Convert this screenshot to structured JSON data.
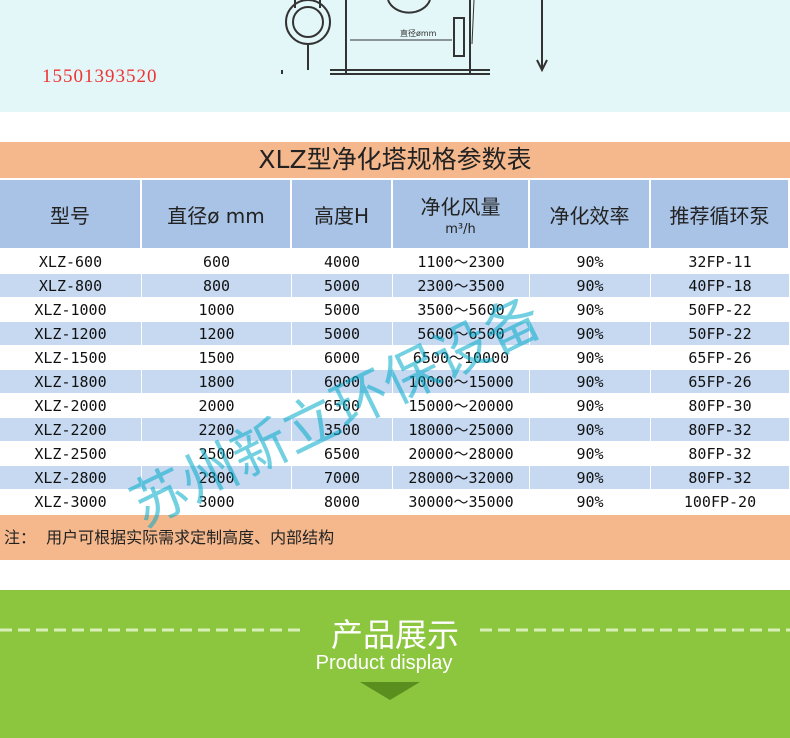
{
  "phone": "15501393520",
  "table": {
    "title": "XLZ型净化塔规格参数表",
    "header": [
      "型号",
      "直径ø mm",
      "高度H",
      "净化风量",
      "净化效率",
      "推荐循环泵"
    ],
    "header_unit": "m³/h",
    "rows": [
      [
        "XLZ-600",
        "600",
        "4000",
        "1100～2300",
        "90%",
        "32FP-11"
      ],
      [
        "XLZ-800",
        "800",
        "5000",
        "2300～3500",
        "90%",
        "40FP-18"
      ],
      [
        "XLZ-1000",
        "1000",
        "5000",
        "3500～5600",
        "90%",
        "50FP-22"
      ],
      [
        "XLZ-1200",
        "1200",
        "5000",
        "5600～6500",
        "90%",
        "50FP-22"
      ],
      [
        "XLZ-1500",
        "1500",
        "6000",
        "6500～10000",
        "90%",
        "65FP-26"
      ],
      [
        "XLZ-1800",
        "1800",
        "6000",
        "10000～15000",
        "90%",
        "65FP-26"
      ],
      [
        "XLZ-2000",
        "2000",
        "6500",
        "15000～20000",
        "90%",
        "80FP-30"
      ],
      [
        "XLZ-2200",
        "2200",
        "3500",
        "18000～25000",
        "90%",
        "80FP-32"
      ],
      [
        "XLZ-2500",
        "2500",
        "6500",
        "20000～28000",
        "90%",
        "80FP-32"
      ],
      [
        "XLZ-2800",
        "2800",
        "7000",
        "28000～32000",
        "90%",
        "80FP-32"
      ],
      [
        "XLZ-3000",
        "3000",
        "8000",
        "30000～35000",
        "90%",
        "100FP-20"
      ]
    ],
    "note": "注：  用户可根据实际需求定制高度、内部结构"
  },
  "watermark": "苏州新立环保设备",
  "banner": {
    "title": "产品展示",
    "subtitle": "Product display"
  }
}
